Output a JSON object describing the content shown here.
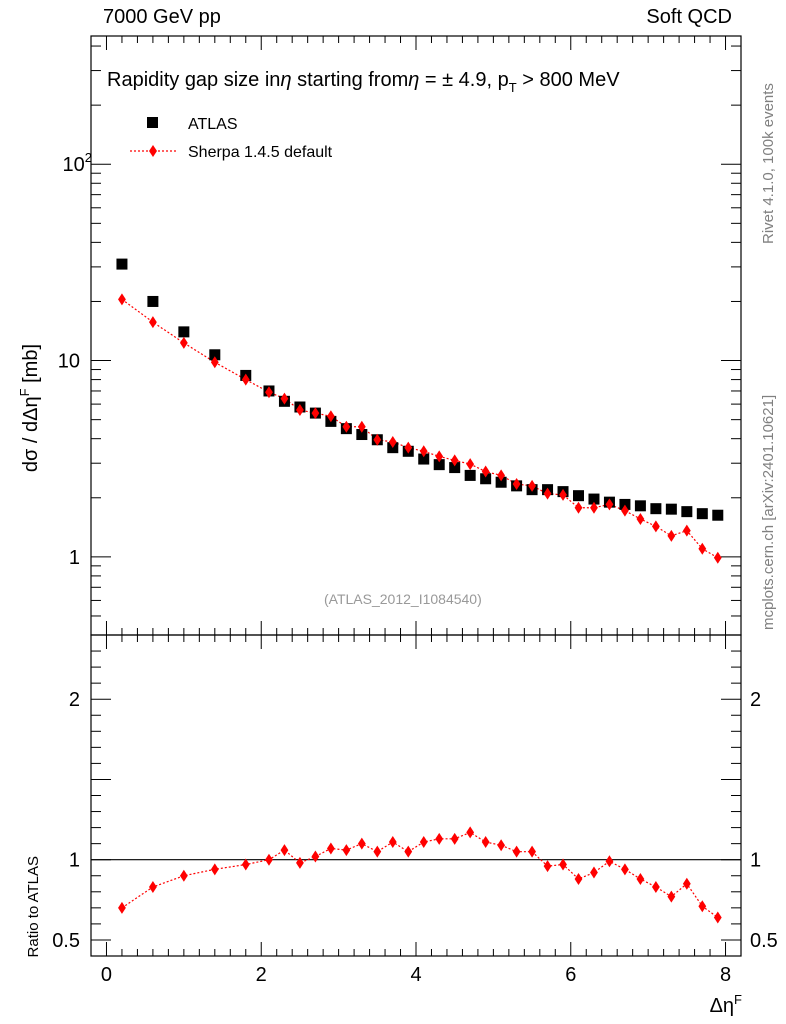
{
  "header": {
    "left": "7000 GeV pp",
    "right": "Soft QCD"
  },
  "side_labels": {
    "rivet": "Rivet 4.1.0,  100k events",
    "mcplots": "mcplots.cern.ch [arXiv:2401.10621]"
  },
  "watermark": "(ATLAS_2012_I1084540)",
  "colors": {
    "mc": "#ff0000",
    "data": "#000000"
  },
  "chart_data": [
    {
      "type": "scatter",
      "title": "Rapidity gap size in η starting from η = ± 4.9, pT > 800 MeV",
      "title_parts": {
        "a": "Rapidity gap size in",
        "b": "η",
        "c": " starting from",
        "d": "η",
        "e": " = ± 4.9, p",
        "f": "T",
        "g": " > 800 MeV"
      },
      "ylabel": {
        "a": "dσ / dΔη",
        "b": "F",
        "c": " [mb]"
      },
      "yscale": "log",
      "xlim": [
        -0.2,
        8.2
      ],
      "ylim": [
        0.4,
        450
      ],
      "yticks": [
        {
          "v": 1,
          "b": "1",
          "e": ""
        },
        {
          "v": 10,
          "b": "10",
          "e": ""
        },
        {
          "v": 100,
          "b": "10",
          "e": "2"
        }
      ],
      "legend": [
        {
          "name": "ATLAS",
          "marker": "square"
        },
        {
          "name": "Sherpa 1.4.5 default",
          "marker": "diamond"
        }
      ],
      "x": [
        0.2,
        0.6,
        1.0,
        1.4,
        1.8,
        2.1,
        2.3,
        2.5,
        2.7,
        2.9,
        3.1,
        3.3,
        3.5,
        3.7,
        3.9,
        4.1,
        4.3,
        4.5,
        4.7,
        4.9,
        5.1,
        5.3,
        5.5,
        5.7,
        5.9,
        6.1,
        6.3,
        6.5,
        6.7,
        6.9,
        7.1,
        7.3,
        7.5,
        7.7,
        7.9
      ],
      "series": [
        {
          "name": "ATLAS",
          "values": [
            31,
            20,
            14,
            10.7,
            8.4,
            7.0,
            6.2,
            5.8,
            5.4,
            4.9,
            4.5,
            4.2,
            3.95,
            3.6,
            3.45,
            3.15,
            2.95,
            2.85,
            2.6,
            2.5,
            2.4,
            2.3,
            2.2,
            2.2,
            2.15,
            2.05,
            1.97,
            1.9,
            1.85,
            1.82,
            1.76,
            1.75,
            1.7,
            1.66,
            1.63
          ]
        },
        {
          "name": "Sherpa 1.4.5 default",
          "values": [
            20.5,
            15.7,
            12.3,
            9.8,
            8.0,
            6.9,
            6.4,
            5.6,
            5.4,
            5.2,
            4.6,
            4.6,
            3.95,
            3.85,
            3.6,
            3.45,
            3.25,
            3.1,
            2.97,
            2.72,
            2.6,
            2.35,
            2.3,
            2.1,
            2.07,
            1.78,
            1.78,
            1.85,
            1.72,
            1.56,
            1.43,
            1.28,
            1.36,
            1.1,
            0.99
          ]
        }
      ]
    },
    {
      "type": "scatter",
      "ylabel": "Ratio to ATLAS",
      "xlabel": {
        "a": "Δη",
        "b": "F"
      },
      "xlim": [
        -0.2,
        8.2
      ],
      "ylim": [
        0.4,
        2.4
      ],
      "xticks": [
        "0",
        "2",
        "4",
        "6",
        "8"
      ],
      "yticks": [
        "0.5",
        "1",
        "2"
      ],
      "x": [
        0.2,
        0.6,
        1.0,
        1.4,
        1.8,
        2.1,
        2.3,
        2.5,
        2.7,
        2.9,
        3.1,
        3.3,
        3.5,
        3.7,
        3.9,
        4.1,
        4.3,
        4.5,
        4.7,
        4.9,
        5.1,
        5.3,
        5.5,
        5.7,
        5.9,
        6.1,
        6.3,
        6.5,
        6.7,
        6.9,
        7.1,
        7.3,
        7.5,
        7.7,
        7.9
      ],
      "values": [
        0.7,
        0.83,
        0.9,
        0.94,
        0.97,
        1.0,
        1.06,
        0.98,
        1.02,
        1.07,
        1.06,
        1.1,
        1.05,
        1.11,
        1.05,
        1.11,
        1.13,
        1.13,
        1.17,
        1.11,
        1.09,
        1.05,
        1.05,
        0.96,
        0.97,
        0.88,
        0.92,
        0.99,
        0.94,
        0.88,
        0.83,
        0.77,
        0.85,
        0.71,
        0.64
      ],
      "errors": [
        0.012,
        0.012,
        0.012,
        0.012,
        0.012,
        0.015,
        0.015,
        0.015,
        0.015,
        0.015,
        0.015,
        0.015,
        0.015,
        0.015,
        0.015,
        0.015,
        0.015,
        0.015,
        0.02,
        0.02,
        0.02,
        0.02,
        0.02,
        0.025,
        0.025,
        0.03,
        0.03,
        0.03,
        0.03,
        0.03,
        0.03,
        0.03,
        0.03,
        0.03,
        0.03
      ]
    }
  ]
}
